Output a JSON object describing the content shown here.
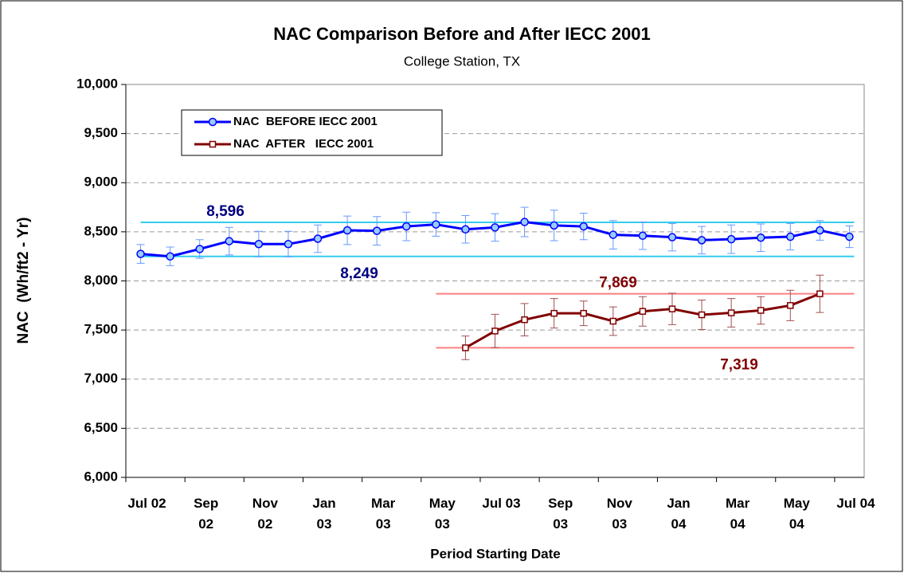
{
  "chart_data": {
    "type": "line",
    "title": "NAC Comparison Before and After IECC 2001",
    "subtitle": "College Station, TX",
    "y_label": "NAC  (Wh/ft2 - Yr)",
    "x_label": "Period Starting Date",
    "categories": [
      "Jul 02",
      null,
      "Sep 02",
      null,
      "Nov 02",
      null,
      "Jan 03",
      null,
      "Mar 03",
      null,
      "May 03",
      null,
      "Jul 03",
      null,
      "Sep 03",
      null,
      "Nov 03",
      null,
      "Jan 04",
      null,
      "Mar 04",
      null,
      "May 04",
      null,
      "Jul 04"
    ],
    "ylim": [
      6000,
      10000
    ],
    "yticks": [
      {
        "value": 6000,
        "label": "6,000"
      },
      {
        "value": 6500,
        "label": "6,500"
      },
      {
        "value": 7000,
        "label": "7,000"
      },
      {
        "value": 7500,
        "label": "7,500"
      },
      {
        "value": 8000,
        "label": "8,000"
      },
      {
        "value": 8500,
        "label": "8,500"
      },
      {
        "value": 9000,
        "label": "9,000"
      },
      {
        "value": 9500,
        "label": "9,500"
      },
      {
        "value": 10000,
        "label": "10,000"
      }
    ],
    "grid": true,
    "legend": "top-left",
    "series": [
      {
        "name": "NAC  BEFORE IECC 2001",
        "color": "#0000ff",
        "marker_fill": "#99ccff",
        "values": [
          8275,
          8250,
          8325,
          8405,
          8375,
          8375,
          8430,
          8515,
          8510,
          8555,
          8575,
          8525,
          8545,
          8600,
          8565,
          8555,
          8470,
          8460,
          8445,
          8415,
          8425,
          8440,
          8450,
          8515,
          8450
        ],
        "errors": [
          95,
          95,
          95,
          140,
          130,
          130,
          140,
          145,
          145,
          145,
          120,
          140,
          140,
          150,
          155,
          135,
          145,
          140,
          140,
          140,
          145,
          140,
          135,
          100,
          110
        ]
      },
      {
        "name": "NAC  AFTER   IECC 2001",
        "color": "#800000",
        "marker_fill": "#ffffff",
        "values": [
          null,
          null,
          null,
          null,
          null,
          null,
          null,
          null,
          null,
          null,
          null,
          7319,
          7490,
          7605,
          7670,
          7670,
          7590,
          7690,
          7715,
          7655,
          7675,
          7700,
          7750,
          7869,
          null
        ],
        "errors": [
          null,
          null,
          null,
          null,
          null,
          null,
          null,
          null,
          null,
          null,
          null,
          120,
          170,
          165,
          150,
          125,
          145,
          150,
          160,
          150,
          145,
          140,
          155,
          190,
          null
        ]
      }
    ],
    "reference_lines": [
      {
        "value": 8596,
        "label": "8,596",
        "color": "#33ccee",
        "label_color": "#000080",
        "start": 0,
        "end": 24
      },
      {
        "value": 8249,
        "label": "8,249",
        "color": "#33ccee",
        "label_color": "#000080",
        "start": 0,
        "end": 24
      },
      {
        "value": 7869,
        "label": "7,869",
        "color": "#ff8080",
        "label_color": "#800000",
        "start": 10,
        "end": 24
      },
      {
        "value": 7319,
        "label": "7,319",
        "color": "#ff8080",
        "label_color": "#800000",
        "start": 10,
        "end": 24
      }
    ]
  }
}
